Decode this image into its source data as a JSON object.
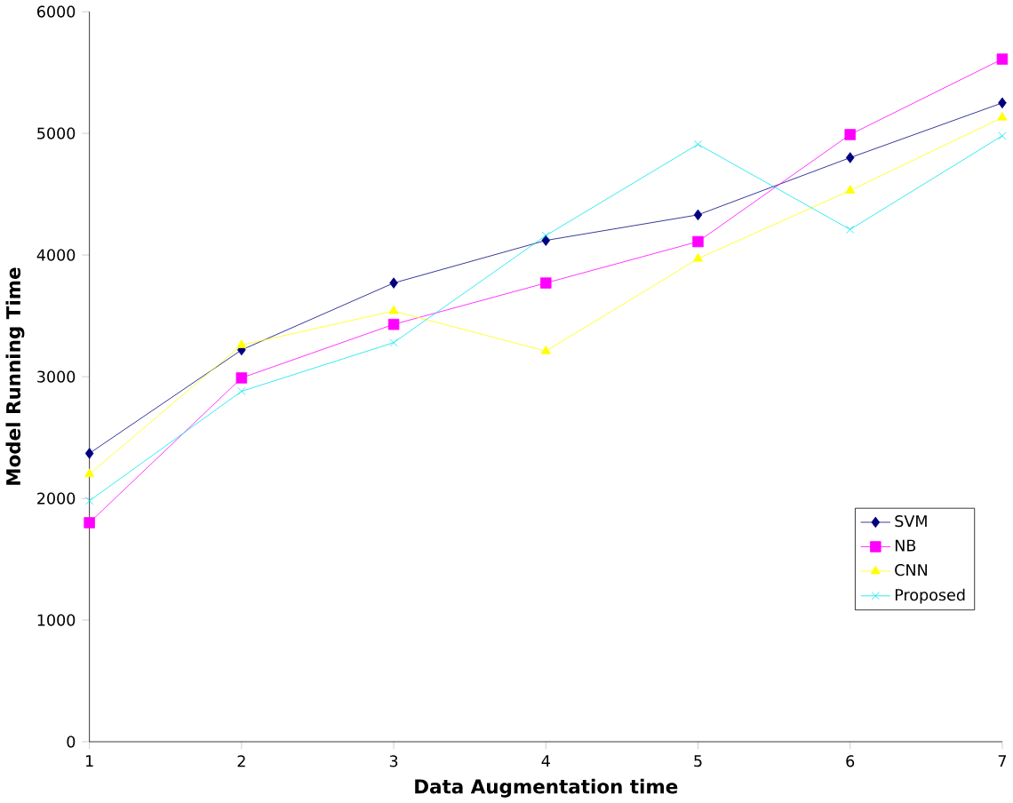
{
  "chart_data": {
    "type": "line",
    "xlabel": "Data Augmentation time",
    "ylabel": "Model Running Time",
    "x": [
      1,
      2,
      3,
      4,
      5,
      6,
      7
    ],
    "xlim": [
      1,
      7
    ],
    "xticks": [
      1,
      2,
      3,
      4,
      5,
      6,
      7
    ],
    "ylim": [
      0,
      6000
    ],
    "yticks": [
      0,
      1000,
      2000,
      3000,
      4000,
      5000,
      6000
    ],
    "legend": "bottom right",
    "line_style": "solid",
    "series": [
      {
        "name": "SVM",
        "color": "#000080",
        "marker": "diamond",
        "values": [
          2370,
          3220,
          3770,
          4120,
          4330,
          4800,
          5250
        ]
      },
      {
        "name": "NB",
        "color": "#ff00ff",
        "marker": "square",
        "values": [
          1800,
          2990,
          3430,
          3770,
          4110,
          4990,
          5610
        ]
      },
      {
        "name": "CNN",
        "color": "#ffff00",
        "marker": "triangle",
        "values": [
          2200,
          3260,
          3540,
          3210,
          3970,
          4530,
          5130
        ]
      },
      {
        "name": "Proposed",
        "color": "#00e5ee",
        "marker": "cross",
        "values": [
          1980,
          2880,
          3280,
          4160,
          4910,
          4210,
          4980
        ]
      }
    ]
  }
}
